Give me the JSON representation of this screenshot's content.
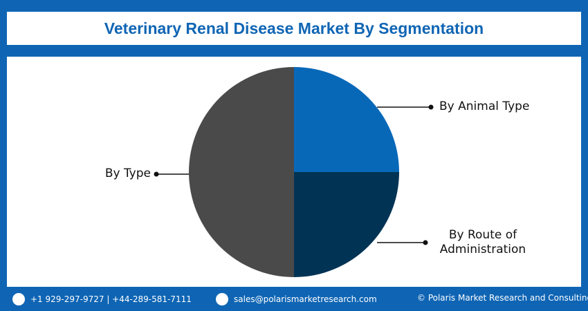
{
  "chart_data": {
    "type": "pie",
    "title": "Veterinary Renal Disease Market By Segmentation",
    "categories": [
      "By Animal Type",
      "By Route of Administration",
      "By Type"
    ],
    "values": [
      25,
      25,
      50
    ],
    "colors": [
      "#0868b8",
      "#003354",
      "#4a4a4a"
    ]
  },
  "footer": {
    "phone": "+1 929-297-9727 | +44-289-581-7111",
    "email": "sales@polarismarketresearch.com",
    "copyright": "© Polaris Market Research and Consulting LLP"
  }
}
